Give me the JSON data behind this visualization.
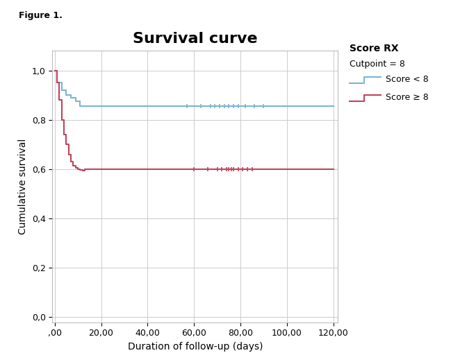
{
  "title": "Survival curve",
  "figure_label": "Figure 1.",
  "xlabel": "Duration of follow-up (days)",
  "ylabel": "Cumulative survival",
  "legend_title_bold": "Score RX",
  "legend_subtitle": "Cutpoint = 8",
  "legend_label_low": "Score < 8",
  "legend_label_high": "Score ≥ 8",
  "color_low": "#7ab4d8",
  "color_high": "#c0435a",
  "xlim": [
    -1,
    122
  ],
  "ylim": [
    -0.02,
    1.08
  ],
  "xticks": [
    0,
    20,
    40,
    60,
    80,
    100,
    120
  ],
  "xtick_labels": [
    ",00",
    "20,00",
    "40,00",
    "60,00",
    "80,00",
    "100,00",
    "120,00"
  ],
  "yticks": [
    0.0,
    0.2,
    0.4,
    0.6,
    0.8,
    1.0
  ],
  "ytick_labels": [
    "0,0",
    "0,2",
    "0,4",
    "0,6",
    "0,8",
    "1,0"
  ],
  "km_low_x": [
    0,
    1,
    1,
    3,
    3,
    5,
    5,
    7,
    7,
    9,
    9,
    11,
    11,
    14,
    14,
    120
  ],
  "km_low_y": [
    1.0,
    1.0,
    0.95,
    0.95,
    0.92,
    0.92,
    0.9,
    0.9,
    0.89,
    0.89,
    0.875,
    0.875,
    0.855,
    0.855,
    0.855,
    0.855
  ],
  "km_high_x": [
    0,
    1,
    1,
    2,
    2,
    3,
    3,
    4,
    4,
    5,
    5,
    6,
    6,
    7,
    7,
    8,
    8,
    9,
    9,
    10,
    10,
    11,
    11,
    12,
    12,
    13,
    13,
    14,
    14,
    120
  ],
  "km_high_y": [
    1.0,
    1.0,
    0.95,
    0.95,
    0.88,
    0.88,
    0.8,
    0.8,
    0.74,
    0.74,
    0.7,
    0.7,
    0.66,
    0.66,
    0.63,
    0.63,
    0.615,
    0.615,
    0.605,
    0.605,
    0.601,
    0.601,
    0.598,
    0.598,
    0.595,
    0.595,
    0.6,
    0.6,
    0.6,
    0.6
  ],
  "censor_low_x": [
    57,
    63,
    67,
    69,
    71,
    73,
    75,
    77,
    79,
    82,
    86,
    90
  ],
  "censor_low_y": [
    0.855,
    0.855,
    0.855,
    0.855,
    0.855,
    0.855,
    0.855,
    0.855,
    0.855,
    0.855,
    0.855,
    0.855
  ],
  "censor_high_x": [
    60,
    66,
    70,
    72,
    74,
    75,
    76,
    77,
    79,
    81,
    83,
    85
  ],
  "censor_high_y": [
    0.6,
    0.6,
    0.6,
    0.6,
    0.6,
    0.6,
    0.6,
    0.6,
    0.6,
    0.6,
    0.6,
    0.6
  ],
  "background_color": "#ffffff",
  "grid_color": "#cccccc",
  "title_fontsize": 16,
  "label_fontsize": 10,
  "tick_fontsize": 9,
  "legend_title_fontsize": 10,
  "legend_fontsize": 9
}
